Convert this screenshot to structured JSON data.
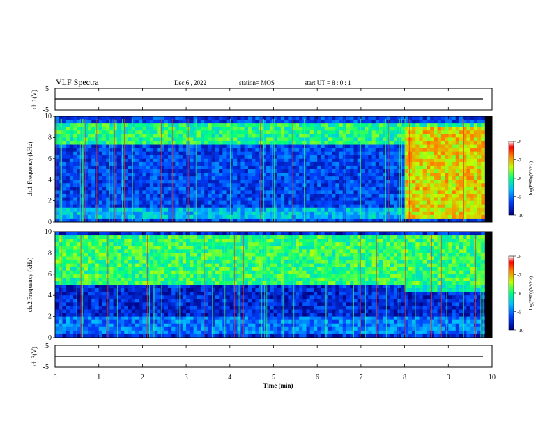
{
  "header": {
    "title": "VLF Spectra",
    "date": "Dec.6 , 2022",
    "station": "station= MOS",
    "start": "start  UT =   8 : 0 : 1"
  },
  "chart_data": [
    {
      "type": "line",
      "panel": "channel-1-voltage",
      "ylabel": "ch.1(V)",
      "ylim": [
        -5,
        5
      ],
      "yticks": [
        "5",
        "-5"
      ],
      "x_unit": "min",
      "series": [
        {
          "x": [
            0,
            9.8
          ],
          "y": [
            -0.2,
            -0.2
          ]
        }
      ]
    },
    {
      "type": "heatmap",
      "panel": "channel-1-spectrogram",
      "ylabel": "ch.1\nFrequency (kHz)",
      "ylim": [
        0,
        10
      ],
      "yticks": [
        "0",
        "2",
        "4",
        "6",
        "8",
        "10"
      ],
      "xlim": [
        0,
        10
      ],
      "colorbar": {
        "label": "log(PSD)(V²/Hz)",
        "ticks": [
          "-6",
          "-7",
          "-8",
          "-9",
          "-10"
        ],
        "range": [
          -10,
          -6
        ]
      },
      "background_level": -9.3,
      "bands": [
        {
          "fmin": 7.5,
          "fmax": 9.2,
          "level": -8.0
        },
        {
          "fmin": 0.3,
          "fmax": 1.4,
          "level": -8.6
        }
      ],
      "transition_min": 8.0,
      "after_transition": {
        "fmin": 0.2,
        "fmax": 9.0,
        "level": -7.2
      }
    },
    {
      "type": "heatmap",
      "panel": "channel-2-spectrogram",
      "ylabel": "ch.2\nFrequency (kHz)",
      "ylim": [
        0,
        10
      ],
      "yticks": [
        "0",
        "2",
        "4",
        "6",
        "8",
        "10"
      ],
      "xlim": [
        0,
        10
      ],
      "colorbar": {
        "label": "log(PSD)(V²/Hz)",
        "ticks": [
          "-6",
          "-7",
          "-8",
          "-9",
          "-10"
        ],
        "range": [
          -10,
          -6
        ]
      },
      "background_level": -9.5,
      "bands": [
        {
          "fmin": 5.0,
          "fmax": 9.5,
          "level": -7.9
        },
        {
          "fmin": 0.3,
          "fmax": 2.0,
          "level": -9.0
        }
      ],
      "transition_min": 8.0,
      "after_transition": {
        "fmin": 4.5,
        "fmax": 9.5,
        "level": -8.2
      }
    },
    {
      "type": "line",
      "panel": "channel-3-voltage",
      "ylabel": "ch.3(V)",
      "ylim": [
        -5,
        5
      ],
      "yticks": [
        "5",
        "-5"
      ],
      "xlabel": "Time (min)",
      "xticks": [
        "0",
        "1",
        "2",
        "3",
        "4",
        "5",
        "6",
        "7",
        "8",
        "9",
        "10"
      ],
      "series": [
        {
          "x": [
            0,
            9.8
          ],
          "y": [
            -0.2,
            -0.2
          ]
        }
      ]
    }
  ]
}
